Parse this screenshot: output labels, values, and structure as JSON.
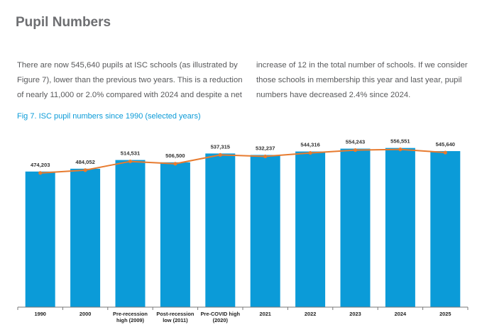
{
  "page": {
    "title": "Pupil Numbers",
    "paragraph_left": "There are now 545,640 pupils at ISC schools (as illustrated by Figure 7), lower than the previous two years. This is a reduction of nearly 11,000 or 2.0% compared with 2024 and despite a net",
    "paragraph_right": "increase of 12 in the total number of schools. If we consider those schools in membership this year and last year, pupil numbers have decreased 2.4% since 2024.",
    "figure_caption": "Fig 7. ISC pupil numbers since 1990 (selected years)"
  },
  "chart_data": {
    "type": "bar",
    "title": "Fig 7. ISC pupil numbers since 1990 (selected years)",
    "xlabel": "",
    "ylabel": "",
    "categories": [
      [
        "1990"
      ],
      [
        "2000"
      ],
      [
        "Pre-recession",
        "high (2009)"
      ],
      [
        "Post-recession",
        "low (2011)"
      ],
      [
        "Pre-COVID high",
        "(2020)"
      ],
      [
        "2021"
      ],
      [
        "2022"
      ],
      [
        "2023"
      ],
      [
        "2024"
      ],
      [
        "2025"
      ]
    ],
    "values": [
      474203,
      484052,
      514531,
      506500,
      537315,
      532237,
      544316,
      554243,
      556551,
      545640
    ],
    "value_labels": [
      "474,203",
      "484,052",
      "514,531",
      "506,500",
      "537,315",
      "532,237",
      "544,316",
      "554,243",
      "556,551",
      "545,640"
    ],
    "ylim": [
      0,
      640000
    ],
    "grid": false,
    "legend": "none",
    "overlay": "line",
    "colors": {
      "bar": "#0b9bd8",
      "line": "#e77b2f",
      "axis": "#777777"
    }
  }
}
